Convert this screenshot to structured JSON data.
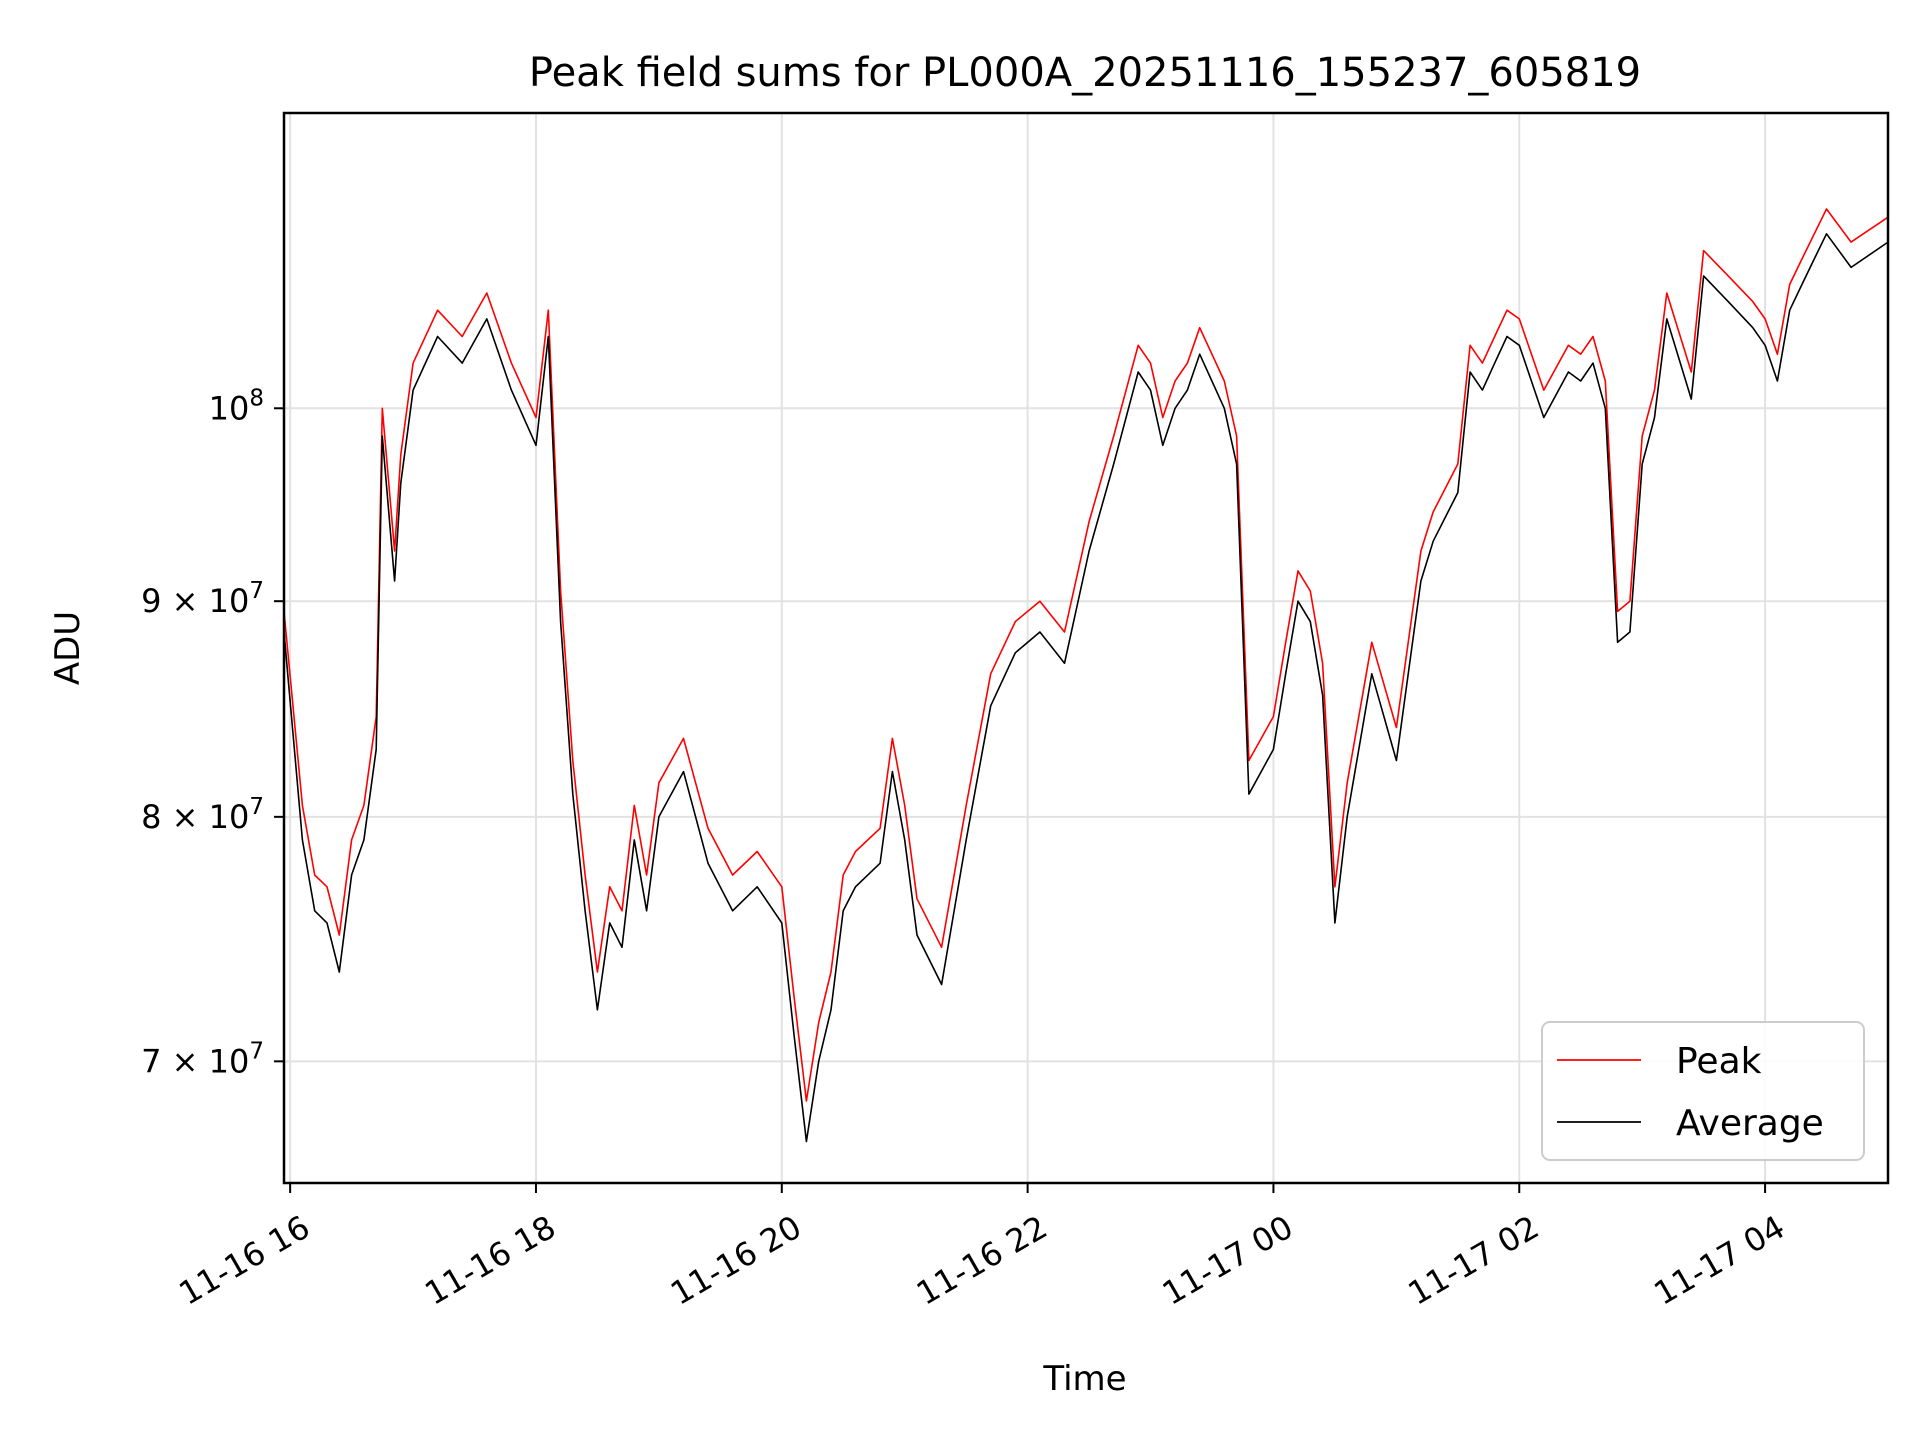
{
  "chart_data": {
    "type": "line",
    "title": "Peak field sums for PL000A_20251116_155237_605819",
    "xlabel": "Time",
    "ylabel": "ADU",
    "yscale": "log",
    "ylim": [
      65500000,
      117500000
    ],
    "xlim_hours": [
      15.95,
      29.0
    ],
    "x_ticks": [
      {
        "hour": 16,
        "label": "11-16 16"
      },
      {
        "hour": 18,
        "label": "11-16 18"
      },
      {
        "hour": 20,
        "label": "11-16 20"
      },
      {
        "hour": 22,
        "label": "11-16 22"
      },
      {
        "hour": 24,
        "label": "11-17 00"
      },
      {
        "hour": 26,
        "label": "11-17 02"
      },
      {
        "hour": 28,
        "label": "11-17 04"
      }
    ],
    "y_ticks": [
      {
        "value": 70000000,
        "label_base": "7 × 10",
        "label_exp": "7"
      },
      {
        "value": 80000000,
        "label_base": "8 × 10",
        "label_exp": "7"
      },
      {
        "value": 90000000,
        "label_base": "9 × 10",
        "label_exp": "7"
      },
      {
        "value": 100000000,
        "label_base": "10",
        "label_exp": "8"
      }
    ],
    "grid": true,
    "legend_position": "lower right",
    "series": [
      {
        "name": "Peak",
        "color": "#ff0000"
      },
      {
        "name": "Average",
        "color": "#000000"
      }
    ],
    "x_hours": [
      15.95,
      16.1,
      16.2,
      16.3,
      16.4,
      16.5,
      16.6,
      16.7,
      16.75,
      16.85,
      16.9,
      17.0,
      17.2,
      17.4,
      17.6,
      17.8,
      18.0,
      18.1,
      18.2,
      18.3,
      18.4,
      18.5,
      18.6,
      18.7,
      18.8,
      18.9,
      19.0,
      19.2,
      19.4,
      19.6,
      19.8,
      20.0,
      20.1,
      20.2,
      20.3,
      20.4,
      20.5,
      20.6,
      20.8,
      20.9,
      21.0,
      21.1,
      21.3,
      21.5,
      21.7,
      21.9,
      22.1,
      22.3,
      22.5,
      22.7,
      22.9,
      23.0,
      23.1,
      23.2,
      23.3,
      23.4,
      23.6,
      23.7,
      23.8,
      24.0,
      24.1,
      24.2,
      24.3,
      24.4,
      24.5,
      24.6,
      24.8,
      25.0,
      25.2,
      25.3,
      25.5,
      25.6,
      25.7,
      25.8,
      25.9,
      26.0,
      26.2,
      26.4,
      26.5,
      26.6,
      26.7,
      26.8,
      26.9,
      27.0,
      27.1,
      27.2,
      27.4,
      27.5,
      27.7,
      27.9,
      28.0,
      28.1,
      28.2,
      28.3,
      28.4,
      28.5,
      28.7,
      29.0
    ],
    "average": [
      88500000,
      79000000,
      76000000,
      75500000,
      73500000,
      77500000,
      79000000,
      83000000,
      98500000,
      91000000,
      96000000,
      101000000,
      104000000,
      102500000,
      105000000,
      101000000,
      98000000,
      104000000,
      89000000,
      81000000,
      76000000,
      72000000,
      75500000,
      74500000,
      79000000,
      76000000,
      80000000,
      82000000,
      78000000,
      76000000,
      77000000,
      75500000,
      71000000,
      67000000,
      70000000,
      72000000,
      76000000,
      77000000,
      78000000,
      82000000,
      79000000,
      75000000,
      73000000,
      79000000,
      85000000,
      87500000,
      88500000,
      87000000,
      92500000,
      97000000,
      102000000,
      101000000,
      98000000,
      100000000,
      101000000,
      103000000,
      100000000,
      97000000,
      81000000,
      83000000,
      86500000,
      90000000,
      89000000,
      85500000,
      75500000,
      80000000,
      86500000,
      82500000,
      91000000,
      93000000,
      95500000,
      102000000,
      101000000,
      102500000,
      104000000,
      103500000,
      99500000,
      102000000,
      101500000,
      102500000,
      100000000,
      88000000,
      88500000,
      97000000,
      99500000,
      105000000,
      100500000,
      107500000,
      106000000,
      104500000,
      103500000,
      101500000,
      105500000,
      107000000,
      108500000,
      110000000,
      108000000,
      109500000
    ],
    "peak": [
      89500000,
      80500000,
      77500000,
      77000000,
      75000000,
      79000000,
      80500000,
      84500000,
      100000000,
      92500000,
      97500000,
      102500000,
      105500000,
      104000000,
      106500000,
      102500000,
      99500000,
      105500000,
      90500000,
      82500000,
      77500000,
      73500000,
      77000000,
      76000000,
      80500000,
      77500000,
      81500000,
      83500000,
      79500000,
      77500000,
      78500000,
      77000000,
      72500000,
      68500000,
      71500000,
      73500000,
      77500000,
      78500000,
      79500000,
      83500000,
      80500000,
      76500000,
      74500000,
      80500000,
      86500000,
      89000000,
      90000000,
      88500000,
      94000000,
      98500000,
      103500000,
      102500000,
      99500000,
      101500000,
      102500000,
      104500000,
      101500000,
      98500000,
      82500000,
      84500000,
      88000000,
      91500000,
      90500000,
      87000000,
      77000000,
      81500000,
      88000000,
      84000000,
      92500000,
      94500000,
      97000000,
      103500000,
      102500000,
      104000000,
      105500000,
      105000000,
      101000000,
      103500000,
      103000000,
      104000000,
      101500000,
      89500000,
      90000000,
      98500000,
      101000000,
      106500000,
      102000000,
      109000000,
      107500000,
      106000000,
      105000000,
      103000000,
      107000000,
      108500000,
      110000000,
      111500000,
      109500000,
      111000000
    ],
    "legend": [
      {
        "label": "Peak",
        "color": "#ff0000"
      },
      {
        "label": "Average",
        "color": "#000000"
      }
    ]
  }
}
